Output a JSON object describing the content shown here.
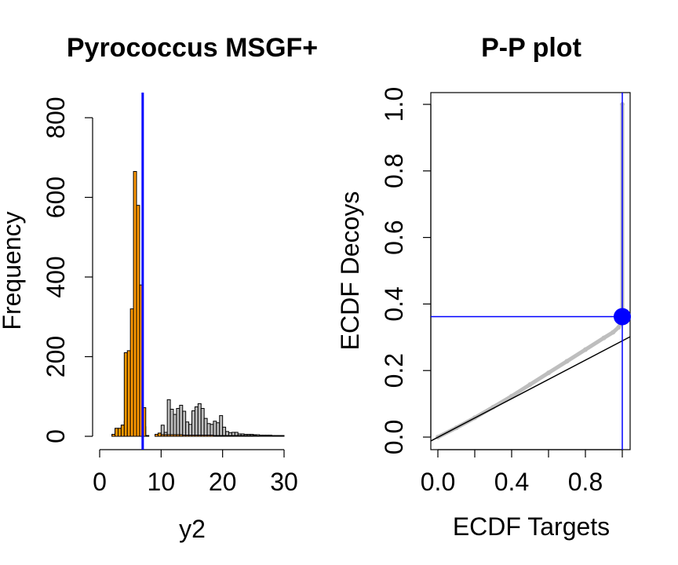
{
  "chart_data": [
    {
      "type": "bar",
      "title": "Pyrococcus MSGF+",
      "xlabel": "y2",
      "ylabel": "Frequency",
      "xlim": [
        0,
        30
      ],
      "ylim": [
        0,
        800
      ],
      "xticks": [
        "0",
        "10",
        "20",
        "30"
      ],
      "yticks": [
        "0",
        "200",
        "400",
        "600",
        "800"
      ],
      "bin_width": 0.5,
      "bin_start": 0.0,
      "series": [
        {
          "color": "#bebebe",
          "values": [
            0,
            0,
            0,
            0,
            5,
            20,
            20,
            28,
            38,
            45,
            45,
            62,
            68,
            37,
            24,
            2,
            0,
            0,
            2,
            8,
            28,
            10,
            92,
            68,
            55,
            70,
            78,
            63,
            36,
            30,
            64,
            74,
            82,
            70,
            45,
            32,
            30,
            38,
            34,
            52,
            23,
            12,
            9,
            10,
            10,
            6,
            6,
            5,
            5,
            5,
            4,
            4,
            3,
            3,
            3,
            3,
            2,
            2,
            2,
            2
          ]
        },
        {
          "color": "#ff9900",
          "values": [
            0,
            0,
            0,
            0,
            5,
            20,
            20,
            28,
            210,
            215,
            320,
            665,
            580,
            380,
            72,
            0,
            0,
            0,
            5,
            8,
            4,
            4,
            4,
            4,
            4,
            4,
            4,
            3,
            3,
            3,
            3,
            3,
            3,
            3,
            3,
            3,
            3,
            2,
            2,
            2,
            2,
            2,
            2,
            2,
            2,
            2,
            2,
            2,
            2,
            2,
            2,
            1,
            1,
            1,
            1,
            1,
            1,
            1,
            1,
            1
          ]
        }
      ],
      "vline": {
        "x": 7,
        "color": "#0000ff"
      }
    },
    {
      "type": "scatter",
      "title": "P-P plot",
      "xlabel": "ECDF Targets",
      "ylabel": "ECDF Decoys",
      "xlim": [
        0,
        1
      ],
      "ylim": [
        0,
        1
      ],
      "xticks": [
        "0.0",
        "0.4",
        "0.8"
      ],
      "yticks": [
        "0.0",
        "0.2",
        "0.4",
        "0.6",
        "0.8",
        "1.0"
      ],
      "series": [
        {
          "color": "#bebebe",
          "x": [
            0.0,
            0.1,
            0.2,
            0.3,
            0.4,
            0.5,
            0.6,
            0.7,
            0.8,
            0.9,
            0.95,
            0.98,
            0.995,
            1.0,
            1.0
          ],
          "y": [
            0.0,
            0.028,
            0.058,
            0.09,
            0.123,
            0.158,
            0.193,
            0.228,
            0.263,
            0.298,
            0.315,
            0.33,
            0.345,
            0.36,
            1.0
          ]
        }
      ],
      "reference_line": {
        "slope": 0.29,
        "intercept": 0,
        "color": "#000000"
      },
      "highlight_point": {
        "x": 1.0,
        "y": 0.362,
        "color": "#0000ff"
      },
      "hline": {
        "y": 0.362,
        "color": "#0000ff"
      },
      "vline": {
        "x": 1.0,
        "color": "#0000ff"
      }
    }
  ]
}
